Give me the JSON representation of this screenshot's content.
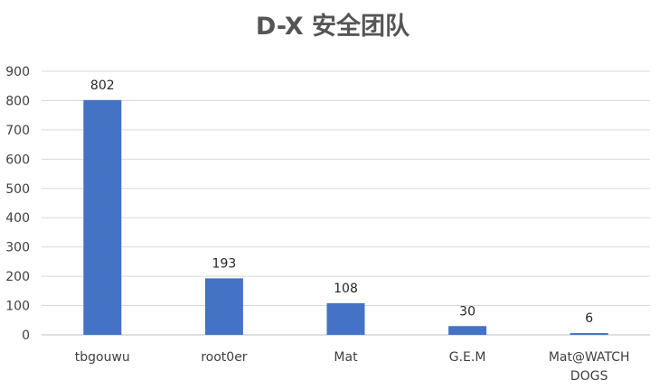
{
  "chart_data": {
    "type": "bar",
    "title": "D-X 安全团队",
    "categories": [
      "tbgouwu",
      "root0er",
      "Mat",
      "G.E.M",
      "Mat@WATCH DOGS"
    ],
    "category_lines": [
      [
        "tbgouwu"
      ],
      [
        "root0er"
      ],
      [
        "Mat"
      ],
      [
        "G.E.M"
      ],
      [
        "Mat@WATCH",
        "DOGS"
      ]
    ],
    "values": [
      802,
      193,
      108,
      30,
      6
    ],
    "data_labels": [
      "802",
      "193",
      "108",
      "30",
      "6"
    ],
    "yticks": [
      "0",
      "100",
      "200",
      "300",
      "400",
      "500",
      "600",
      "700",
      "800",
      "900"
    ],
    "ylim": [
      0,
      900
    ],
    "xlabel": "",
    "ylabel": "",
    "grid": true,
    "legend": "none",
    "bar_color": "#4472c4"
  }
}
